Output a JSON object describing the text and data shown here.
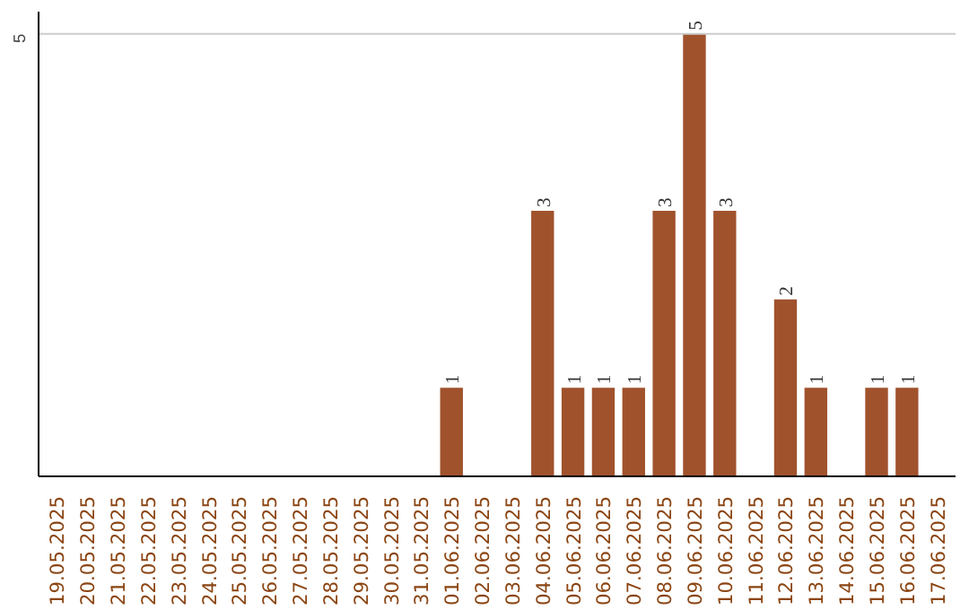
{
  "chart_data": {
    "type": "bar",
    "categories": [
      "19.05.2025",
      "20.05.2025",
      "21.05.2025",
      "22.05.2025",
      "23.05.2025",
      "24.05.2025",
      "25.05.2025",
      "26.05.2025",
      "27.05.2025",
      "28.05.2025",
      "29.05.2025",
      "30.05.2025",
      "31.05.2025",
      "01.06.2025",
      "02.06.2025",
      "03.06.2025",
      "04.06.2025",
      "05.06.2025",
      "06.06.2025",
      "07.06.2025",
      "08.06.2025",
      "09.06.2025",
      "10.06.2025",
      "11.06.2025",
      "12.06.2025",
      "13.06.2025",
      "14.06.2025",
      "15.06.2025",
      "16.06.2025",
      "17.06.2025"
    ],
    "values": [
      null,
      null,
      null,
      null,
      null,
      null,
      null,
      null,
      null,
      null,
      null,
      null,
      null,
      1,
      null,
      null,
      3,
      1,
      1,
      1,
      3,
      5,
      3,
      null,
      2,
      1,
      null,
      1,
      1,
      null
    ],
    "color": "#a0522d",
    "ref_lines": [
      {
        "axis": "y",
        "value": 5,
        "label": "5",
        "color": "#cccccc"
      }
    ],
    "data_labels": true
  }
}
